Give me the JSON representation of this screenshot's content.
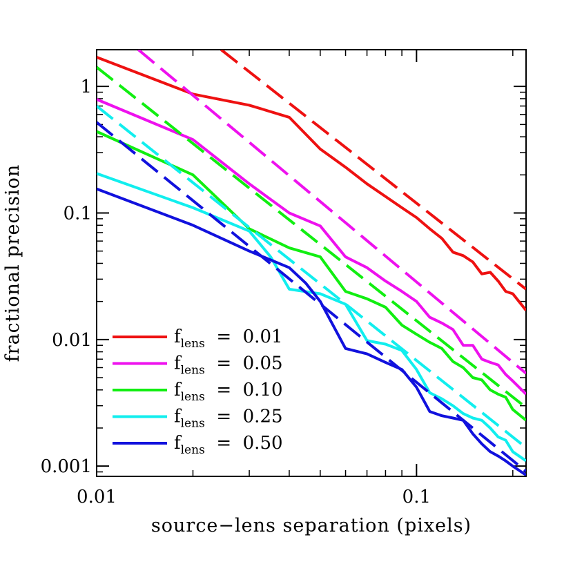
{
  "chart_data": {
    "type": "line",
    "xlabel": "source−lens separation (pixels)",
    "ylabel": "fractional precision",
    "xscale": "log",
    "yscale": "log",
    "xlim": [
      0.01,
      0.22
    ],
    "ylim": [
      0.00083,
      1.95
    ],
    "xticks": [
      {
        "value": 0.01,
        "label": "0.01"
      },
      {
        "value": 0.1,
        "label": "0.1"
      }
    ],
    "yticks": [
      {
        "value": 1,
        "label": "1"
      },
      {
        "value": 0.1,
        "label": "0.1"
      },
      {
        "value": 0.01,
        "label": "0.01"
      },
      {
        "value": 0.001,
        "label": "0.001"
      }
    ],
    "legend": {
      "placement": "bottom-left",
      "entries": [
        {
          "prefix": "f",
          "sub": "lens",
          "suffix": " = 0.01",
          "color": "#ee1111"
        },
        {
          "prefix": "f",
          "sub": "lens",
          "suffix": " = 0.05",
          "color": "#ee11ee"
        },
        {
          "prefix": "f",
          "sub": "lens",
          "suffix": " = 0.10",
          "color": "#11ee11"
        },
        {
          "prefix": "f",
          "sub": "lens",
          "suffix": " = 0.25",
          "color": "#11eeee"
        },
        {
          "prefix": "f",
          "sub": "lens",
          "suffix": " = 0.50",
          "color": "#1111dd"
        }
      ]
    },
    "series": [
      {
        "color": "#ee1111",
        "style": "solid",
        "x": [
          0.01,
          0.02,
          0.03,
          0.04,
          0.05,
          0.06,
          0.07,
          0.08,
          0.09,
          0.1,
          0.11,
          0.12,
          0.13,
          0.14,
          0.15,
          0.16,
          0.17,
          0.18,
          0.19,
          0.2,
          0.22
        ],
        "y": [
          1.7,
          0.87,
          0.71,
          0.57,
          0.32,
          0.23,
          0.17,
          0.135,
          0.11,
          0.092,
          0.075,
          0.063,
          0.049,
          0.046,
          0.041,
          0.033,
          0.034,
          0.029,
          0.024,
          0.023,
          0.017
        ]
      },
      {
        "color": "#ee1111",
        "style": "dashed",
        "x": [
          0.0245,
          0.22
        ],
        "y": [
          1.95,
          0.025
        ]
      },
      {
        "color": "#ee11ee",
        "style": "solid",
        "x": [
          0.01,
          0.02,
          0.03,
          0.04,
          0.05,
          0.06,
          0.07,
          0.08,
          0.09,
          0.1,
          0.11,
          0.12,
          0.13,
          0.14,
          0.15,
          0.16,
          0.17,
          0.18,
          0.19,
          0.2,
          0.22
        ],
        "y": [
          0.79,
          0.38,
          0.17,
          0.1,
          0.079,
          0.045,
          0.037,
          0.029,
          0.024,
          0.02,
          0.015,
          0.0135,
          0.012,
          0.009,
          0.009,
          0.007,
          0.0066,
          0.0063,
          0.0053,
          0.0047,
          0.0037
        ]
      },
      {
        "color": "#ee11ee",
        "style": "dashed",
        "x": [
          0.0135,
          0.22
        ],
        "y": [
          1.95,
          0.0054
        ]
      },
      {
        "color": "#11ee11",
        "style": "solid",
        "x": [
          0.01,
          0.02,
          0.03,
          0.04,
          0.05,
          0.06,
          0.07,
          0.08,
          0.09,
          0.1,
          0.11,
          0.12,
          0.13,
          0.14,
          0.15,
          0.16,
          0.17,
          0.18,
          0.19,
          0.2,
          0.22
        ],
        "y": [
          0.44,
          0.2,
          0.075,
          0.053,
          0.045,
          0.024,
          0.021,
          0.018,
          0.013,
          0.011,
          0.0095,
          0.0085,
          0.0067,
          0.006,
          0.005,
          0.0048,
          0.004,
          0.0037,
          0.0035,
          0.0028,
          0.0023
        ]
      },
      {
        "color": "#11ee11",
        "style": "dashed",
        "x": [
          0.01,
          0.22
        ],
        "y": [
          1.42,
          0.0029
        ]
      },
      {
        "color": "#11eeee",
        "style": "solid",
        "x": [
          0.01,
          0.02,
          0.03,
          0.035,
          0.04,
          0.05,
          0.06,
          0.07,
          0.08,
          0.09,
          0.1,
          0.11,
          0.12,
          0.13,
          0.14,
          0.15,
          0.16,
          0.17,
          0.18,
          0.19,
          0.2,
          0.22
        ],
        "y": [
          0.205,
          0.11,
          0.072,
          0.045,
          0.025,
          0.023,
          0.019,
          0.0098,
          0.0092,
          0.0082,
          0.0058,
          0.0038,
          0.0034,
          0.003,
          0.0026,
          0.0024,
          0.0023,
          0.002,
          0.0017,
          0.0016,
          0.0013,
          0.0011
        ]
      },
      {
        "color": "#11eeee",
        "style": "dashed",
        "x": [
          0.01,
          0.22
        ],
        "y": [
          0.7,
          0.0014
        ]
      },
      {
        "color": "#1111dd",
        "style": "solid",
        "x": [
          0.01,
          0.02,
          0.03,
          0.04,
          0.045,
          0.05,
          0.06,
          0.07,
          0.08,
          0.09,
          0.1,
          0.11,
          0.12,
          0.13,
          0.14,
          0.15,
          0.16,
          0.17,
          0.18,
          0.19,
          0.2,
          0.22
        ],
        "y": [
          0.155,
          0.08,
          0.05,
          0.037,
          0.028,
          0.02,
          0.0085,
          0.0077,
          0.0066,
          0.0058,
          0.0042,
          0.0027,
          0.0025,
          0.0024,
          0.0023,
          0.0018,
          0.0015,
          0.0013,
          0.0012,
          0.0011,
          0.001,
          0.00085
        ]
      },
      {
        "color": "#1111dd",
        "style": "dashed",
        "x": [
          0.01,
          0.22
        ],
        "y": [
          0.52,
          0.00091
        ]
      }
    ]
  }
}
